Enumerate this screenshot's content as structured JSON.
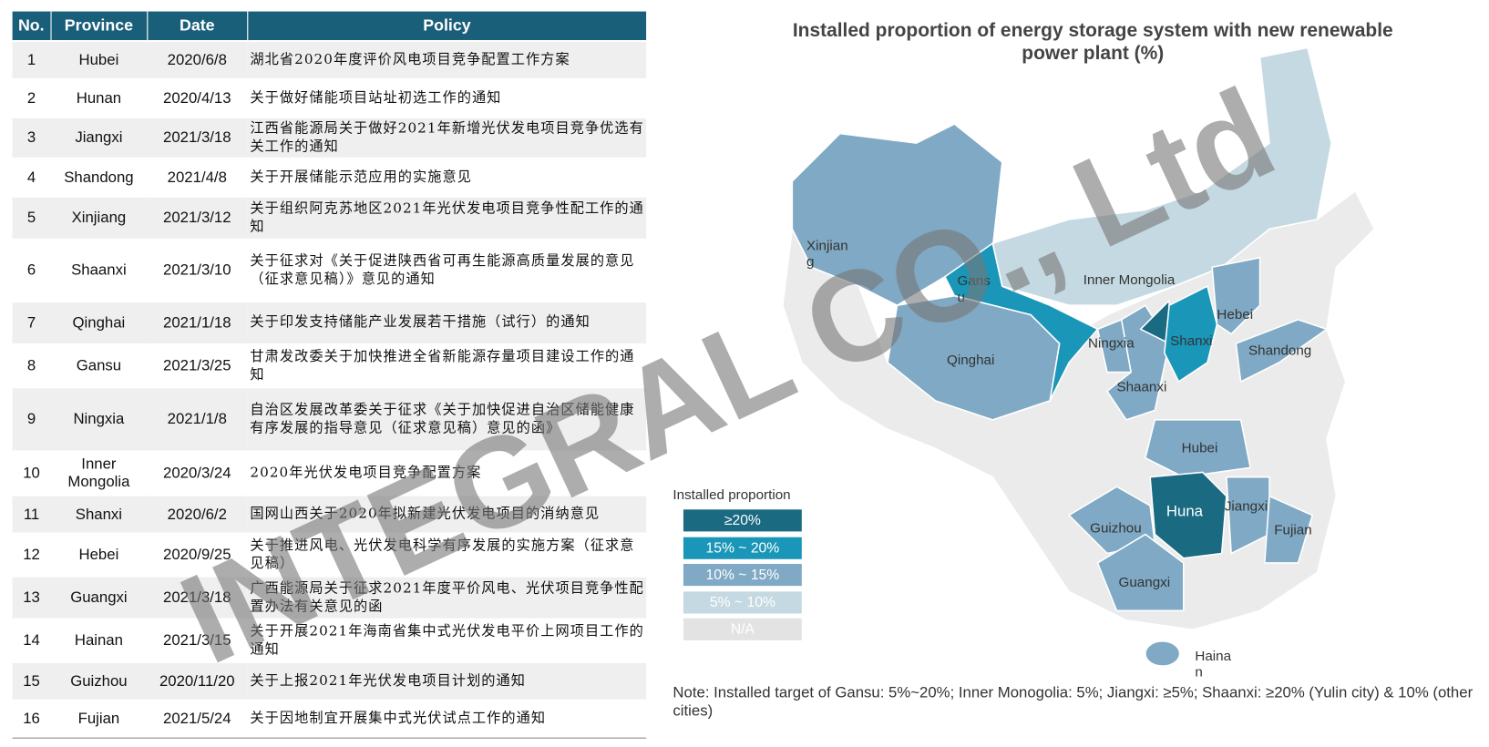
{
  "table": {
    "header": [
      "No.",
      "Province",
      "Date",
      "Policy"
    ],
    "rows": [
      [
        "1",
        "Hubei",
        "2020/6/8",
        "湖北省2020年度评价风电项目竞争配置工作方案"
      ],
      [
        "2",
        "Hunan",
        "2020/4/13",
        "关于做好储能项目站址初选工作的通知"
      ],
      [
        "3",
        "Jiangxi",
        "2021/3/18",
        "江西省能源局关于做好2021年新增光伏发电项目竞争优选有关工作的通知"
      ],
      [
        "4",
        "Shandong",
        "2021/4/8",
        "关于开展储能示范应用的实施意见"
      ],
      [
        "5",
        "Xinjiang",
        "2021/3/12",
        "关于组织阿克苏地区2021年光伏发电项目竞争性配工作的通知"
      ],
      [
        "6",
        "Shaanxi",
        "2021/3/10",
        "关于征求对《关于促进陕西省可再生能源高质量发展的意见（征求意见稿）》意见的通知"
      ],
      [
        "7",
        "Qinghai",
        "2021/1/18",
        "关于印发支持储能产业发展若干措施（试行）的通知"
      ],
      [
        "8",
        "Gansu",
        "2021/3/25",
        "甘肃发改委关于加快推进全省新能源存量项目建设工作的通知"
      ],
      [
        "9",
        "Ningxia",
        "2021/1/8",
        "自治区发展改革委关于征求《关于加快促进自治区储能健康有序发展的指导意见（征求意见稿）意见的函》"
      ],
      [
        "10",
        "Inner Mongolia",
        "2020/3/24",
        "2020年光伏发电项目竞争配置方案"
      ],
      [
        "11",
        "Shanxi",
        "2020/6/2",
        "国网山西关于2020年拟新建光伏发电项目的消纳意见"
      ],
      [
        "12",
        "Hebei",
        "2020/9/25",
        "关于推进风电、光伏发电科学有序发展的实施方案（征求意见稿）"
      ],
      [
        "13",
        "Guangxi",
        "2021/3/18",
        "广西能源局关于征求2021年度平价风电、光伏项目竞争性配置办法有关意见的函"
      ],
      [
        "14",
        "Hainan",
        "2021/3/15",
        "关于开展2021年海南省集中式光伏发电平价上网项目工作的通知"
      ],
      [
        "15",
        "Guizhou",
        "2020/11/20",
        "关于上报2021年光伏发电项目计划的通知"
      ],
      [
        "16",
        "Fujian",
        "2021/5/24",
        "关于因地制宜开展集中式光伏试点工作的通知"
      ]
    ]
  },
  "map": {
    "title": "Installed proportion of energy storage system with new renewable power plant (%)",
    "labels": [
      "Xinjiang",
      "Gansu",
      "Inner Mongolia",
      "Ningxia",
      "Shanxi",
      "Hebei",
      "Shandong",
      "Qinghai",
      "Shaanxi",
      "Hubei",
      "Huna",
      "Jiangxi",
      "Fujian",
      "Guizhou",
      "Guangxi",
      "Hainan"
    ],
    "legend": {
      "title": "Installed proportion",
      "items": [
        "≥20%",
        "15% ~ 20%",
        "10% ~ 15%",
        "5% ~ 10%",
        "N/A"
      ]
    },
    "note": "Note: Installed target of Gansu: 5%~20%; Inner Monogolia: 5%; Jiangxi: ≥5%; Shaanxi: ≥20% (Yulin city) & 10% (other cities)"
  },
  "watermark": "INTEGRAL CO., Ltd"
}
